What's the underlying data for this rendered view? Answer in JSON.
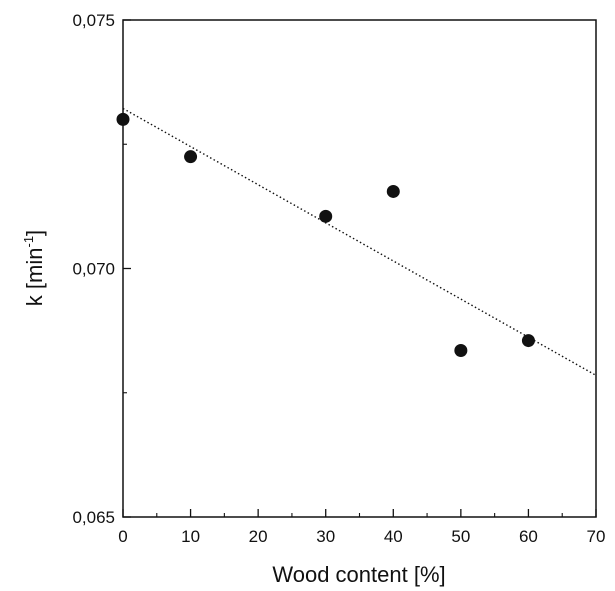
{
  "chart_data": {
    "type": "scatter",
    "x": [
      0,
      10,
      30,
      40,
      50,
      60
    ],
    "y": [
      0.073,
      0.07225,
      0.07105,
      0.07155,
      0.06835,
      0.06855
    ],
    "xlim": [
      0,
      70
    ],
    "ylim": [
      0.065,
      0.075
    ],
    "xticks": [
      0,
      10,
      20,
      30,
      40,
      50,
      60,
      70
    ],
    "xtick_labels": [
      "0",
      "10",
      "20",
      "30",
      "40",
      "50",
      "60",
      "70"
    ],
    "yticks": [
      0.065,
      0.07,
      0.075
    ],
    "ytick_labels": [
      "0,065",
      "0,070",
      "0,075"
    ],
    "xlabel": "Wood content [%]",
    "ylabel_main": "k [min",
    "ylabel_sup": "-1",
    "ylabel_close": "]",
    "fit_line": {
      "style": "dotted",
      "start": [
        0,
        0.07322
      ],
      "end": [
        70,
        0.06785
      ]
    },
    "marker_color": "#111111",
    "grid": false,
    "legend": "none"
  }
}
